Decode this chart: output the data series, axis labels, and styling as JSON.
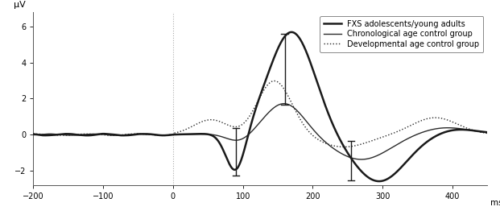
{
  "xlim": [
    -200,
    450
  ],
  "ylim": [
    -2.8,
    6.8
  ],
  "xlabel": "ms",
  "ylabel": "μV",
  "yticks": [
    -2,
    0,
    2,
    4,
    6
  ],
  "xticks": [
    -200,
    -100,
    0,
    100,
    200,
    300,
    400
  ],
  "legend_labels": [
    "FXS adolescents/young adults",
    "Chronological age control group",
    "Developmental age control group"
  ],
  "background_color": "#ffffff",
  "vline_x": 0,
  "eb1_x": 90,
  "eb1_low": -2.3,
  "eb1_high": 0.35,
  "eb2_x": 160,
  "eb2_low": 1.65,
  "eb2_high": 5.6,
  "eb3_x": 255,
  "eb3_low": -2.55,
  "eb3_high": -0.35
}
